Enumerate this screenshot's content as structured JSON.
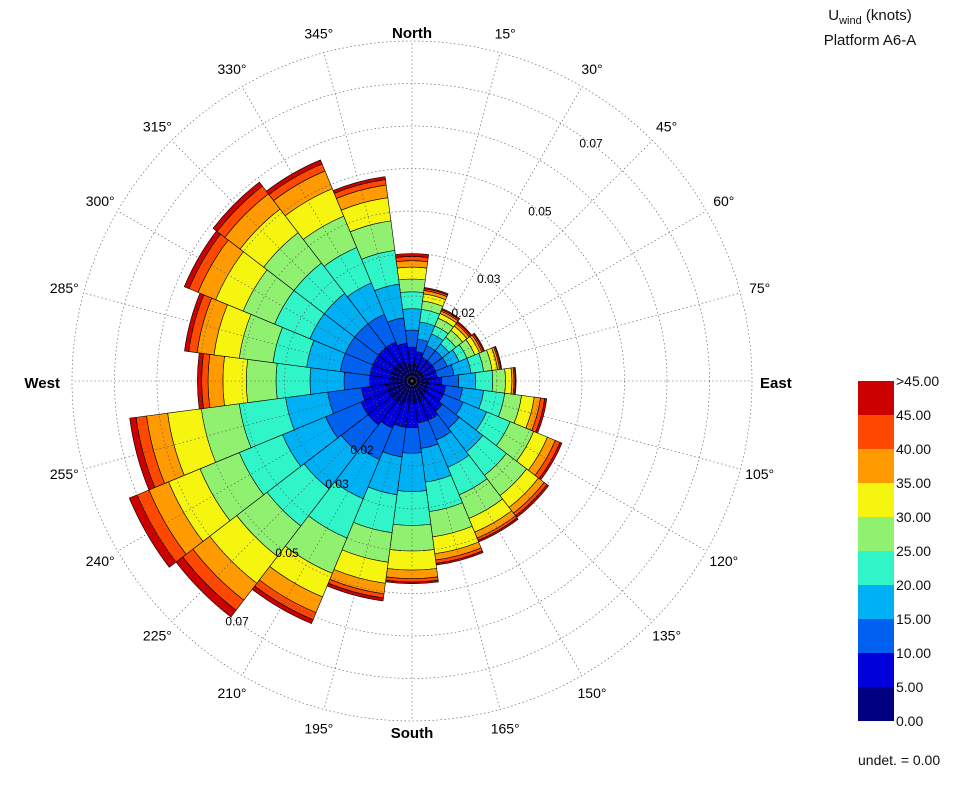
{
  "title": {
    "variable": "U",
    "variable_subscript": "wind",
    "units": " (knots)",
    "station": "Platform A6-A"
  },
  "compass": {
    "north": "North",
    "east": "East",
    "south": "South",
    "west": "West"
  },
  "angle_labels": [
    "15°",
    "30°",
    "45°",
    "60°",
    "75°",
    "105°",
    "120°",
    "135°",
    "150°",
    "165°",
    "195°",
    "210°",
    "225°",
    "240°",
    "255°",
    "285°",
    "300°",
    "315°",
    "330°",
    "345°"
  ],
  "legend": {
    "labels": [
      ">45.00",
      "45.00",
      "40.00",
      "35.00",
      "30.00",
      "25.00",
      "20.00",
      "15.00",
      "10.00",
      "5.00",
      "0.00"
    ],
    "colors": [
      "#000080",
      "#0000dd",
      "#0060f0",
      "#00b0f5",
      "#30f5c8",
      "#90f070",
      "#f5f510",
      "#ff9a00",
      "#ff4800",
      "#cc0000"
    ]
  },
  "undetermined": "undet. = 0.00",
  "chart_data": {
    "type": "polar-stacked-bar",
    "direction_convention": "clockwise from North",
    "sector_width_deg": 15,
    "radial_axis": {
      "max": 0.08,
      "rings": [
        0.01,
        0.02,
        0.03,
        0.04,
        0.05,
        0.06,
        0.07,
        0.08
      ],
      "labels": [
        {
          "value": 0.02,
          "text": "0.02"
        },
        {
          "value": 0.03,
          "text": "0.03"
        },
        {
          "value": 0.05,
          "text": "0.05"
        },
        {
          "value": 0.07,
          "text": "0.07"
        }
      ]
    },
    "speed_bins": [
      "0-5",
      "5-10",
      "10-15",
      "15-20",
      "20-25",
      "25-30",
      "30-35",
      "35-40",
      "40-45",
      ">45"
    ],
    "directions": [
      0,
      15,
      30,
      45,
      60,
      75,
      90,
      105,
      120,
      135,
      150,
      165,
      180,
      195,
      210,
      225,
      240,
      255,
      270,
      285,
      300,
      315,
      330,
      345
    ],
    "cumulative_frequency": [
      [
        0.004,
        0.008,
        0.012,
        0.017,
        0.021,
        0.024,
        0.0268,
        0.0283,
        0.0293,
        0.03
      ],
      [
        0.004,
        0.007,
        0.01,
        0.014,
        0.017,
        0.019,
        0.0207,
        0.0215,
        0.0219,
        0.0222
      ],
      [
        0.003,
        0.006,
        0.009,
        0.012,
        0.014,
        0.016,
        0.0172,
        0.0178,
        0.0182,
        0.0185
      ],
      [
        0.003,
        0.006,
        0.009,
        0.011,
        0.013,
        0.015,
        0.0163,
        0.017,
        0.0174,
        0.0177
      ],
      [
        0.003,
        0.006,
        0.009,
        0.012,
        0.014,
        0.016,
        0.0172,
        0.0178,
        0.0182,
        0.0185
      ],
      [
        0.003,
        0.006,
        0.01,
        0.014,
        0.017,
        0.019,
        0.0203,
        0.0208,
        0.0211,
        0.0213
      ],
      [
        0.004,
        0.007,
        0.011,
        0.015,
        0.019,
        0.022,
        0.0235,
        0.024,
        0.0243,
        0.0245
      ],
      [
        0.004,
        0.008,
        0.012,
        0.017,
        0.022,
        0.026,
        0.029,
        0.0305,
        0.0315,
        0.032
      ],
      [
        0.004,
        0.008,
        0.013,
        0.019,
        0.025,
        0.031,
        0.0345,
        0.0365,
        0.0377,
        0.0382
      ],
      [
        0.004,
        0.009,
        0.014,
        0.021,
        0.028,
        0.034,
        0.0375,
        0.0392,
        0.04,
        0.0405
      ],
      [
        0.005,
        0.01,
        0.015,
        0.022,
        0.029,
        0.035,
        0.0385,
        0.04,
        0.0406,
        0.041
      ],
      [
        0.005,
        0.01,
        0.016,
        0.024,
        0.031,
        0.037,
        0.041,
        0.0425,
        0.0433,
        0.0437
      ],
      [
        0.005,
        0.011,
        0.017,
        0.026,
        0.034,
        0.04,
        0.0445,
        0.0465,
        0.0473,
        0.0477
      ],
      [
        0.005,
        0.011,
        0.018,
        0.027,
        0.036,
        0.043,
        0.048,
        0.0505,
        0.0515,
        0.0522
      ],
      [
        0.006,
        0.012,
        0.02,
        0.03,
        0.04,
        0.049,
        0.055,
        0.059,
        0.0608,
        0.0618
      ],
      [
        0.006,
        0.013,
        0.021,
        0.032,
        0.043,
        0.052,
        0.06,
        0.065,
        0.068,
        0.07
      ],
      [
        0.006,
        0.013,
        0.022,
        0.033,
        0.044,
        0.054,
        0.062,
        0.067,
        0.07,
        0.072
      ],
      [
        0.006,
        0.012,
        0.02,
        0.03,
        0.041,
        0.05,
        0.058,
        0.063,
        0.0655,
        0.067
      ],
      [
        0.005,
        0.01,
        0.016,
        0.024,
        0.032,
        0.039,
        0.0445,
        0.048,
        0.0495,
        0.0505
      ],
      [
        0.005,
        0.01,
        0.017,
        0.025,
        0.033,
        0.041,
        0.047,
        0.051,
        0.053,
        0.054
      ],
      [
        0.005,
        0.01,
        0.017,
        0.026,
        0.035,
        0.043,
        0.05,
        0.0545,
        0.0568,
        0.058
      ],
      [
        0.005,
        0.01,
        0.017,
        0.026,
        0.035,
        0.044,
        0.051,
        0.0555,
        0.0578,
        0.059
      ],
      [
        0.005,
        0.01,
        0.017,
        0.025,
        0.034,
        0.042,
        0.049,
        0.0535,
        0.0553,
        0.0563
      ],
      [
        0.004,
        0.009,
        0.015,
        0.023,
        0.031,
        0.038,
        0.0435,
        0.0465,
        0.0478,
        0.0485
      ]
    ]
  }
}
